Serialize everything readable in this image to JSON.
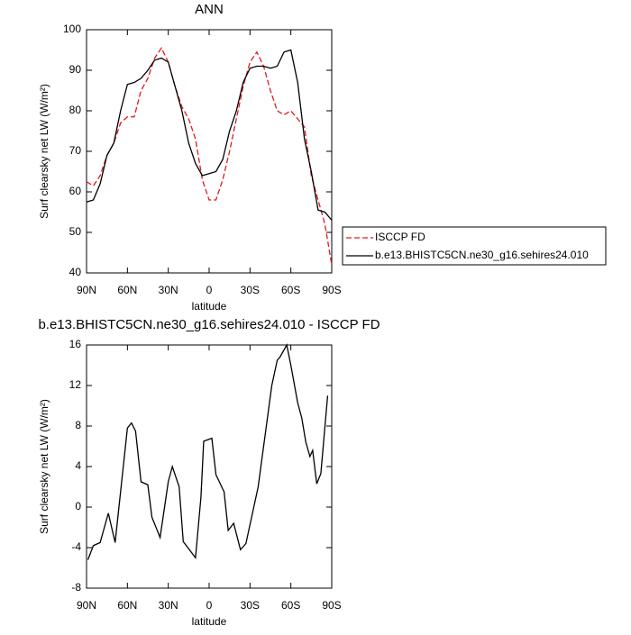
{
  "chart_data": [
    {
      "type": "line",
      "title": "ANN",
      "x_label": "latitude",
      "y_label": "Surf clearsky net LW (W/m²)",
      "x": [
        90,
        85,
        80,
        75,
        70,
        65,
        60,
        55,
        50,
        45,
        40,
        35,
        30,
        25,
        20,
        15,
        10,
        5,
        0,
        -5,
        -10,
        -15,
        -20,
        -25,
        -30,
        -35,
        -40,
        -45,
        -50,
        -55,
        -60,
        -65,
        -70,
        -75,
        -80,
        -85,
        -90
      ],
      "series": [
        {
          "name": "ISCCP FD",
          "color": "#e0191c",
          "dashed": true,
          "values": [
            62.5,
            61.5,
            64,
            69,
            72,
            77,
            78.5,
            78.5,
            85,
            88,
            93,
            95.5,
            92,
            86,
            81,
            78,
            73,
            63,
            58,
            58,
            63,
            70,
            78,
            86,
            92,
            94.5,
            91,
            85,
            80,
            79,
            80,
            78,
            76,
            64,
            58,
            52,
            42
          ]
        },
        {
          "name": "b.e13.BHISTC5CN.ne30_g16.sehires24.010",
          "color": "#000000",
          "dashed": false,
          "values": [
            57.5,
            58,
            62,
            69,
            72,
            80,
            86.5,
            87,
            88,
            90,
            92.5,
            93,
            92,
            86,
            80,
            72,
            67,
            64,
            64.5,
            65,
            68,
            75,
            80,
            87,
            90.5,
            91,
            91,
            90.5,
            91,
            94.5,
            95,
            87,
            73,
            65,
            55.5,
            55,
            53
          ]
        }
      ],
      "xlim": [
        90,
        -90
      ],
      "xticks": [
        {
          "value": 90,
          "label": "90N"
        },
        {
          "value": 60,
          "label": "60N"
        },
        {
          "value": 30,
          "label": "30N"
        },
        0,
        {
          "value": -30,
          "label": "30S"
        },
        {
          "value": -60,
          "label": "60S"
        },
        {
          "value": -90,
          "label": "90S"
        }
      ],
      "ylim": [
        40,
        100
      ],
      "yticks": [
        40,
        50,
        60,
        70,
        80,
        90,
        100
      ],
      "legend": "right"
    },
    {
      "type": "line",
      "title": "b.e13.BHISTC5CN.ne30_g16.sehires24.010 - ISCCP FD",
      "x_label": "latitude",
      "y_label": "Surf clearsky net LW (W/m²)",
      "x": [
        89,
        85,
        80,
        74,
        69,
        60,
        57,
        54,
        50,
        45,
        42,
        36,
        30,
        27,
        22,
        19,
        10,
        6,
        4,
        -2,
        -5,
        -11,
        -14,
        -18,
        -23,
        -27,
        -36,
        -46,
        -50,
        -52,
        -57,
        -60,
        -65,
        -68,
        -71,
        -74,
        -76,
        -79,
        -82,
        -87
      ],
      "values": [
        -5.2,
        -3.8,
        -3.5,
        -0.6,
        -3.5,
        7.8,
        8.3,
        7.5,
        2.5,
        2.2,
        -1,
        -3,
        2.5,
        4,
        2,
        -3.4,
        -5,
        1,
        6.5,
        6.8,
        3.2,
        1.5,
        -2.3,
        -1.6,
        -4.2,
        -3.6,
        2,
        12,
        14.5,
        14.8,
        16,
        14,
        10.3,
        8.8,
        6.4,
        5,
        5.6,
        2.3,
        3.3,
        11
      ],
      "color": "#000000",
      "xlim": [
        90,
        -90
      ],
      "xticks": [
        {
          "value": 90,
          "label": "90N"
        },
        {
          "value": 60,
          "label": "60N"
        },
        {
          "value": 30,
          "label": "30N"
        },
        0,
        {
          "value": -30,
          "label": "30S"
        },
        {
          "value": -60,
          "label": "60S"
        },
        {
          "value": -90,
          "label": "90S"
        }
      ],
      "ylim": [
        -8,
        16
      ],
      "yticks": [
        -8,
        -4,
        0,
        4,
        8,
        12,
        16
      ]
    }
  ]
}
